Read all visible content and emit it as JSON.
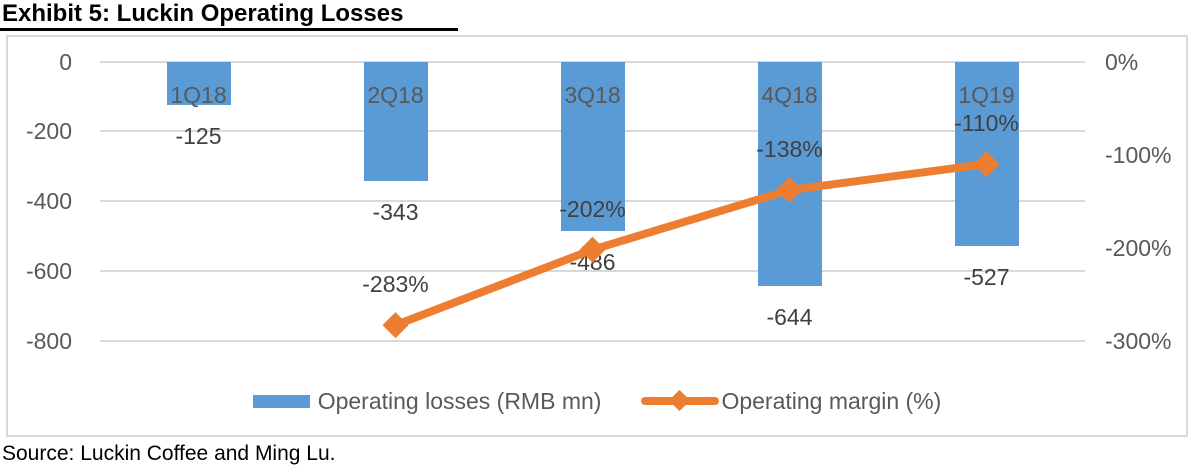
{
  "header": {
    "title": "Exhibit 5: Luckin Operating Losses"
  },
  "footer": {
    "source": "Source: Luckin Coffee and Ming Lu."
  },
  "legend": {
    "items": [
      {
        "label": "Operating losses (RMB mn)",
        "swatch": "bar"
      },
      {
        "label": "Operating margin (%)",
        "swatch": "line-diamond"
      }
    ],
    "position": "bottom-center"
  },
  "colors": {
    "bar": "#5b9bd5",
    "line": "#ed7d31",
    "grid": "#d9d9d9",
    "axis_text": "#595959",
    "data_label": "#404040",
    "title_text": "#000000"
  },
  "chart_data": {
    "type": "bar+line combo",
    "categories": [
      "1Q18",
      "2Q18",
      "3Q18",
      "4Q18",
      "1Q19"
    ],
    "series": [
      {
        "name": "Operating losses (RMB mn)",
        "type": "bar",
        "axis": "left",
        "values": [
          -125,
          -343,
          -486,
          -644,
          -527
        ],
        "data_labels": [
          "-125",
          "-343",
          "-486",
          "-644",
          "-527"
        ]
      },
      {
        "name": "Operating margin (%)",
        "type": "line",
        "axis": "right",
        "marker": "diamond",
        "values": [
          null,
          -283,
          -202,
          -138,
          -110
        ],
        "data_labels": [
          null,
          "-283%",
          "-202%",
          "-138%",
          "-110%"
        ]
      }
    ],
    "left_axis": {
      "tick_labels": [
        "0",
        "-200",
        "-400",
        "-600",
        "-800"
      ],
      "tick_values": [
        0,
        -200,
        -400,
        -600,
        -800
      ],
      "min": -800,
      "max": 0
    },
    "right_axis": {
      "tick_labels": [
        "0%",
        "-100%",
        "-200%",
        "-300%"
      ],
      "tick_values": [
        0,
        -100,
        -200,
        -300
      ],
      "min": -300,
      "max": 0
    },
    "grid": true,
    "legend_position": "bottom"
  }
}
